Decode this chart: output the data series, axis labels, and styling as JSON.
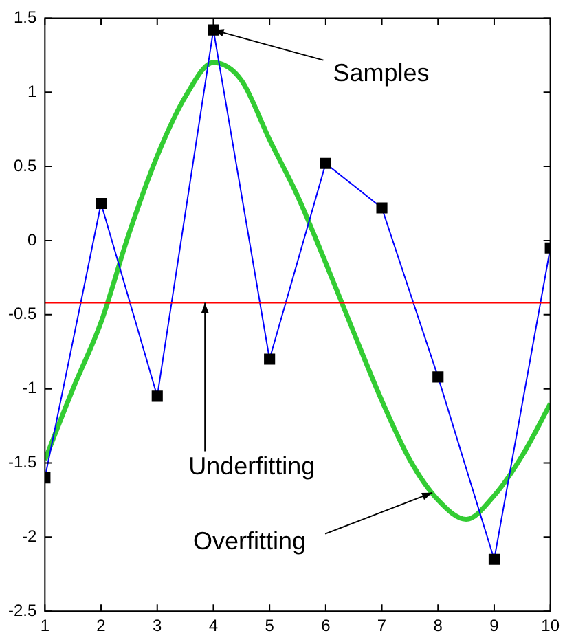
{
  "chart_data": {
    "type": "line",
    "x": [
      1,
      2,
      3,
      4,
      5,
      6,
      7,
      8,
      9,
      10
    ],
    "xlim": [
      1,
      10
    ],
    "xticks": [
      1,
      2,
      3,
      4,
      5,
      6,
      7,
      8,
      9,
      10
    ],
    "ylim": [
      -2.5,
      1.5
    ],
    "yticks": [
      -2.5,
      -2,
      -1.5,
      -1,
      -0.5,
      0,
      0.5,
      1,
      1.5
    ],
    "grid": false,
    "legend": false,
    "series": [
      {
        "color": "#0000ff",
        "marker": "square",
        "line_style": "solid",
        "values": [
          -1.6,
          0.25,
          -1.05,
          1.42,
          -0.8,
          0.52,
          0.22,
          -0.92,
          -2.15,
          -0.05
        ]
      },
      {
        "color": "#33cc33",
        "marker": "none",
        "line_style": "solid",
        "x": [
          1,
          1.5,
          2,
          2.5,
          3,
          3.5,
          4,
          4.5,
          5,
          5.5,
          6,
          6.5,
          7,
          7.5,
          8,
          8.5,
          9,
          9.5,
          10
        ],
        "values": [
          -1.48,
          -1.0,
          -0.55,
          0.05,
          0.57,
          0.97,
          1.2,
          1.08,
          0.68,
          0.3,
          -0.15,
          -0.62,
          -1.08,
          -1.48,
          -1.75,
          -1.88,
          -1.72,
          -1.45,
          -1.1
        ]
      }
    ],
    "ref_lines": [
      {
        "axis": "y",
        "value": -0.42,
        "color": "#ff0000"
      }
    ],
    "annotations": [
      {
        "text": "Samples",
        "x": 4,
        "y": 1.42
      },
      {
        "text": "Underfitting",
        "x": 3.85,
        "y": -0.42
      },
      {
        "text": "Overfitting",
        "x": 7.9,
        "y": -1.7
      }
    ]
  }
}
